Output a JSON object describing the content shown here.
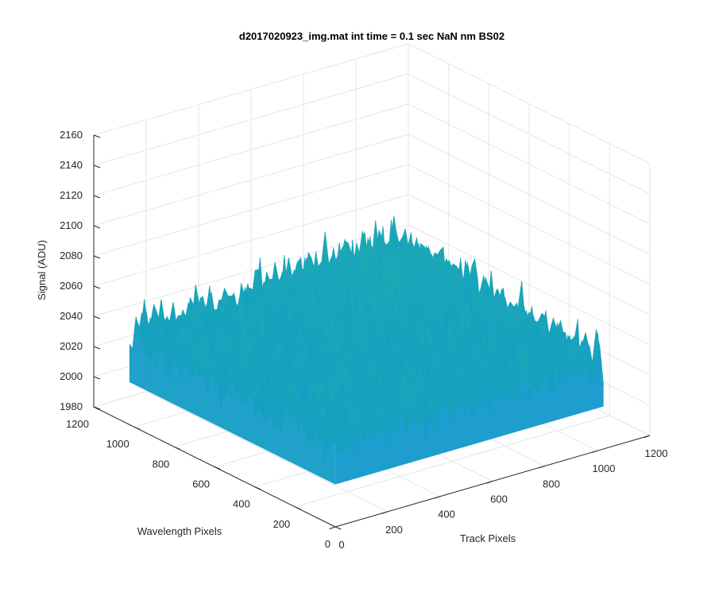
{
  "chart_data": {
    "type": "surface",
    "title": "d2017020923_img.mat int time = 0.1 sec  NaN nm BS02",
    "xlabel": "Track Pixels",
    "ylabel": "Wavelength Pixels",
    "zlabel": "Signal (ADU)",
    "xlim": [
      0,
      1200
    ],
    "ylim": [
      0,
      1200
    ],
    "zlim": [
      1980,
      2160
    ],
    "x_ticks": [
      "0",
      "200",
      "400",
      "600",
      "800",
      "1000",
      "1200"
    ],
    "y_ticks": [
      "0",
      "200",
      "400",
      "600",
      "800",
      "1000",
      "1200"
    ],
    "z_ticks": [
      "1980",
      "2000",
      "2020",
      "2040",
      "2060",
      "2080",
      "2100",
      "2120",
      "2140",
      "2160"
    ],
    "grid": true,
    "colormap": "parula",
    "data_extent": {
      "x": [
        1,
        1024
      ],
      "y": [
        1,
        1024
      ]
    },
    "mean_signal": 2040,
    "signal_range": [
      1995,
      2150
    ],
    "view": "3d-isometric",
    "colors": {
      "axis": "#262626",
      "grid": "#e6e6e6",
      "low": "#0a8fd8",
      "mid": "#22b3a8",
      "high": "#e2d23c"
    }
  }
}
